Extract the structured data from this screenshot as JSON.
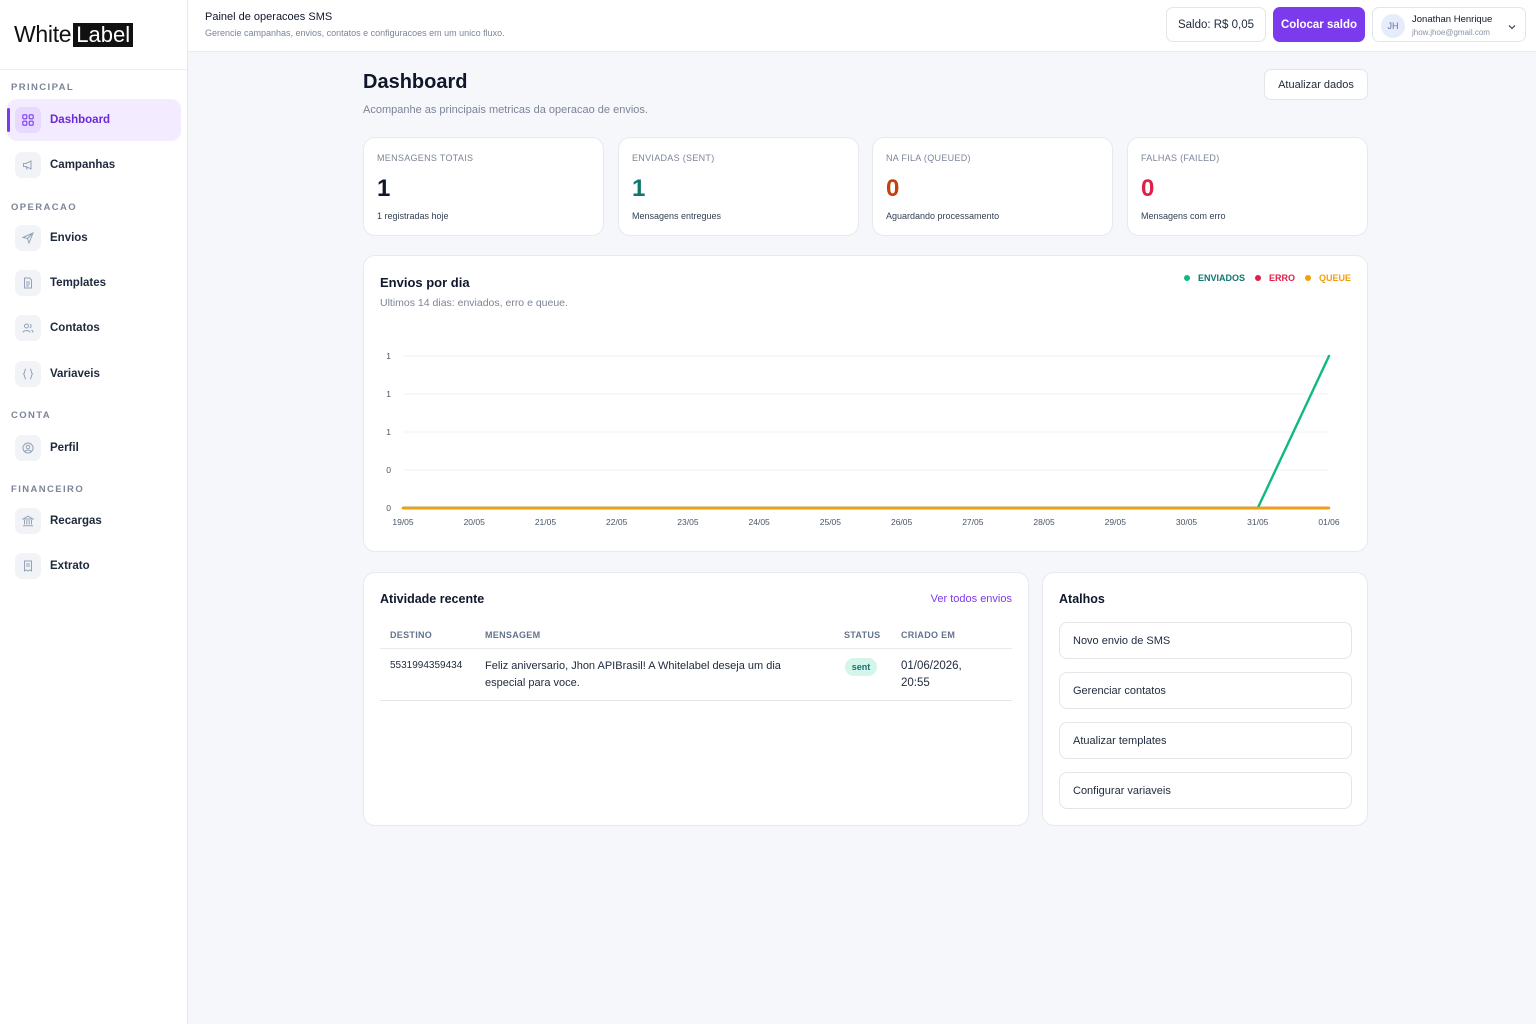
{
  "brand": {
    "white": "White",
    "label": "Label"
  },
  "sidebar": {
    "sections": [
      "PRINCIPAL",
      "OPERACAO",
      "CONTA",
      "FINANCEIRO"
    ],
    "items": [
      {
        "label": "Dashboard",
        "icon": "grid-icon",
        "active": true
      },
      {
        "label": "Campanhas",
        "icon": "megaphone-icon"
      },
      {
        "label": "Envios",
        "icon": "send-icon"
      },
      {
        "label": "Templates",
        "icon": "document-icon"
      },
      {
        "label": "Contatos",
        "icon": "users-icon"
      },
      {
        "label": "Variaveis",
        "icon": "braces-icon"
      },
      {
        "label": "Perfil",
        "icon": "user-circle-icon"
      },
      {
        "label": "Recargas",
        "icon": "bank-icon"
      },
      {
        "label": "Extrato",
        "icon": "receipt-icon"
      }
    ]
  },
  "topbar": {
    "title": "Painel de operacoes SMS",
    "subtitle": "Gerencie campanhas, envios, contatos e configuracoes em um unico fluxo.",
    "balance": "Saldo: R$ 0,05",
    "add_balance": "Colocar saldo",
    "user": {
      "initials": "JH",
      "name": "Jonathan Henrique",
      "email": "jhow.jhoe@gmail.com"
    }
  },
  "page": {
    "title": "Dashboard",
    "subtitle": "Acompanhe as principais metricas da operacao de envios.",
    "refresh": "Atualizar dados"
  },
  "stats": [
    {
      "label": "MENSAGENS TOTAIS",
      "value": "1",
      "sub": "1 registradas hoje",
      "color": "#0f172a"
    },
    {
      "label": "ENVIADAS (SENT)",
      "value": "1",
      "sub": "Mensagens entregues",
      "color": "#0f766e"
    },
    {
      "label": "NA FILA (QUEUED)",
      "value": "0",
      "sub": "Aguardando processamento",
      "color": "#c2410c"
    },
    {
      "label": "FALHAS (FAILED)",
      "value": "0",
      "sub": "Mensagens com erro",
      "color": "#e11d48"
    }
  ],
  "chart": {
    "title": "Envios por dia",
    "subtitle": "Ultimos 14 dias: enviados, erro e queue."
  },
  "chart_data": {
    "type": "line",
    "x": [
      "19/05",
      "20/05",
      "21/05",
      "22/05",
      "23/05",
      "24/05",
      "25/05",
      "26/05",
      "27/05",
      "28/05",
      "29/05",
      "30/05",
      "31/05",
      "01/06"
    ],
    "y_ticks": [
      "1",
      "1",
      "1",
      "0",
      "0"
    ],
    "ylim": [
      0,
      1
    ],
    "grid": true,
    "legend_position": "top-right",
    "series": [
      {
        "name": "ENVIADOS",
        "color": "#10b981",
        "values": [
          0,
          0,
          0,
          0,
          0,
          0,
          0,
          0,
          0,
          0,
          0,
          0,
          0,
          1
        ]
      },
      {
        "name": "ERRO",
        "color": "#e11d48",
        "values": [
          0,
          0,
          0,
          0,
          0,
          0,
          0,
          0,
          0,
          0,
          0,
          0,
          0,
          0
        ]
      },
      {
        "name": "QUEUE",
        "color": "#f59e0b",
        "values": [
          0,
          0,
          0,
          0,
          0,
          0,
          0,
          0,
          0,
          0,
          0,
          0,
          0,
          0
        ]
      }
    ]
  },
  "activity": {
    "title": "Atividade recente",
    "see_all": "Ver todos envios",
    "columns": [
      "DESTINO",
      "MENSAGEM",
      "STATUS",
      "CRIADO EM"
    ],
    "rows": [
      {
        "destino": "5531994359434",
        "mensagem_l1": "Feliz aniversario, Jhon APIBrasil! A Whitelabel deseja um dia",
        "mensagem_l2": "especial para voce.",
        "status": "sent",
        "criado_l1": "01/06/2026,",
        "criado_l2": "20:55"
      }
    ]
  },
  "shortcuts": {
    "title": "Atalhos",
    "items": [
      "Novo envio de SMS",
      "Gerenciar contatos",
      "Atualizar templates",
      "Configurar variaveis"
    ]
  }
}
